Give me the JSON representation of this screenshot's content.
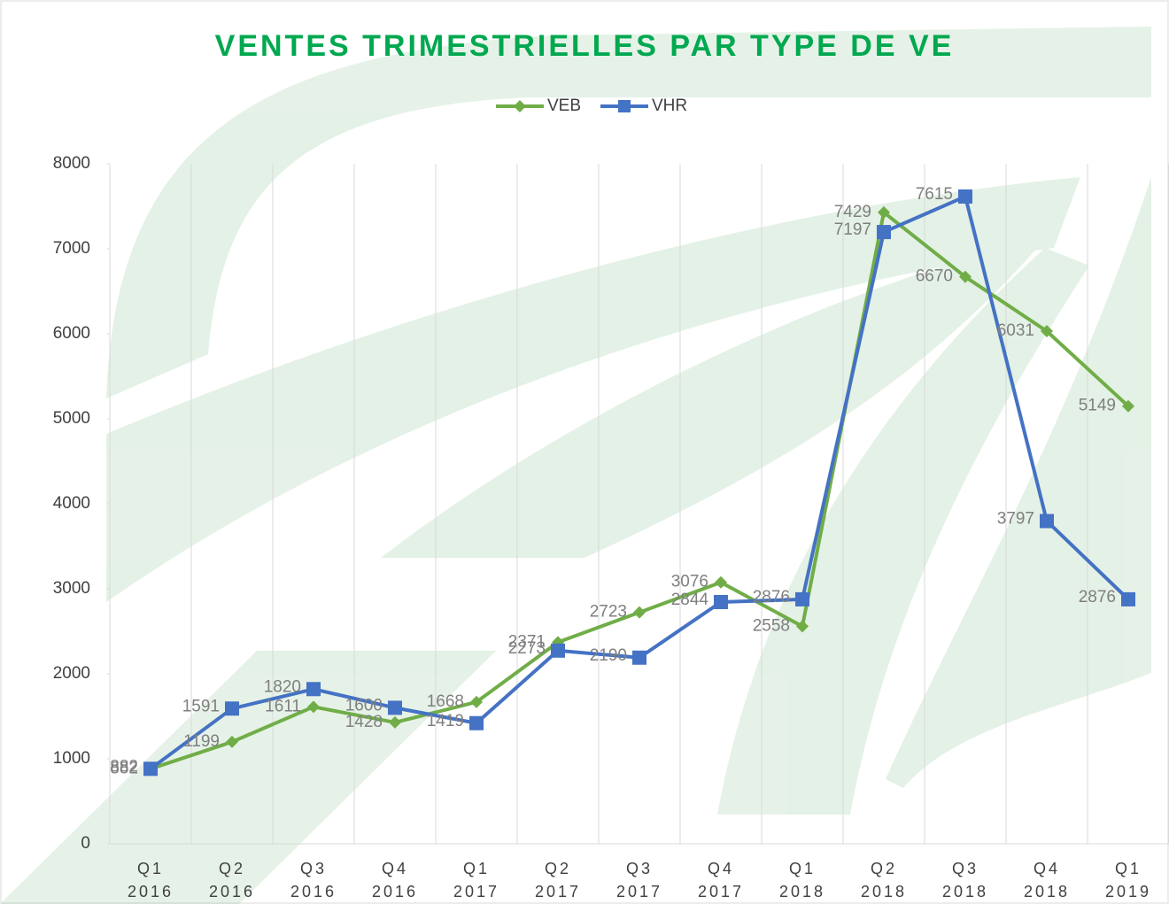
{
  "chart_data": {
    "type": "line",
    "title": "VENTES TRIMESTRIELLES PAR TYPE DE VE",
    "categories": [
      "Q1 2016",
      "Q2 2016",
      "Q3 2016",
      "Q4 2016",
      "Q1 2017",
      "Q2 2017",
      "Q3 2017",
      "Q4 2017",
      "Q1 2018",
      "Q2 2018",
      "Q3 2018",
      "Q4 2018",
      "Q1 2019"
    ],
    "series": [
      {
        "name": "VEB",
        "color": "#70ad47",
        "marker": "diamond",
        "values": [
          882,
          1199,
          1611,
          1428,
          1668,
          2371,
          2723,
          3076,
          2558,
          7429,
          6670,
          6031,
          5149
        ]
      },
      {
        "name": "VHR",
        "color": "#4472c4",
        "marker": "square",
        "values": [
          882,
          1591,
          1820,
          1600,
          1419,
          2273,
          2190,
          2844,
          2876,
          7197,
          7615,
          3797,
          2876
        ]
      }
    ],
    "ylim": [
      0,
      8000
    ],
    "yticks": [
      0,
      1000,
      2000,
      3000,
      4000,
      5000,
      6000,
      7000,
      8000
    ],
    "grid": "vertical",
    "legend": "top"
  }
}
